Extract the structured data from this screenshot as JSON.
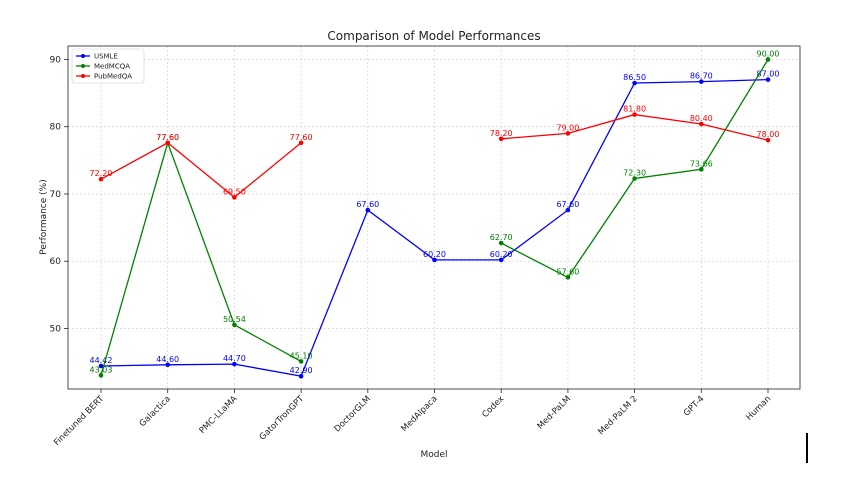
{
  "chart_data": {
    "type": "line",
    "title": "Comparison of Model Performances",
    "xlabel": "Model",
    "ylabel": "Performance (%)",
    "categories": [
      "Finetuned BERT",
      "Galactica",
      "PMC-LLaMA",
      "GatorTronGPT",
      "DoctorGLM",
      "MedAlpaca",
      "Codex",
      "Med-PaLM",
      "Med-PaLM 2",
      "GPT-4",
      "Human"
    ],
    "ylim": [
      41,
      92
    ],
    "yticks": [
      50,
      60,
      70,
      80,
      90
    ],
    "grid": true,
    "legend_position": "top-left",
    "series": [
      {
        "name": "USMLE",
        "color": "#0000ff",
        "values": [
          44.42,
          44.6,
          44.7,
          42.9,
          67.6,
          60.2,
          60.2,
          67.6,
          86.5,
          86.7,
          87.0
        ],
        "labels": [
          "44.42",
          "44.60",
          "44.70",
          "42.90",
          "67.60",
          "60.20",
          "60.20",
          "67.60",
          "86.50",
          "86.70",
          "87.00"
        ]
      },
      {
        "name": "MedMCQA",
        "color": "#008000",
        "values": [
          43.03,
          77.6,
          50.54,
          45.1,
          null,
          null,
          62.7,
          57.6,
          72.3,
          73.66,
          90.0
        ],
        "labels": [
          "43.03",
          "77.60",
          "50.54",
          "45.10",
          null,
          null,
          "62.70",
          "57.60",
          "72.30",
          "73.66",
          "90.00"
        ]
      },
      {
        "name": "PubMedQA",
        "color": "#ff0000",
        "values": [
          72.2,
          77.6,
          69.5,
          77.6,
          null,
          null,
          78.2,
          79.0,
          81.8,
          80.4,
          78.0
        ],
        "labels": [
          "72.20",
          "77.60",
          "69.50",
          "77.60",
          null,
          null,
          "78.20",
          "79.00",
          "81.80",
          "80.40",
          "78.00"
        ]
      }
    ]
  }
}
